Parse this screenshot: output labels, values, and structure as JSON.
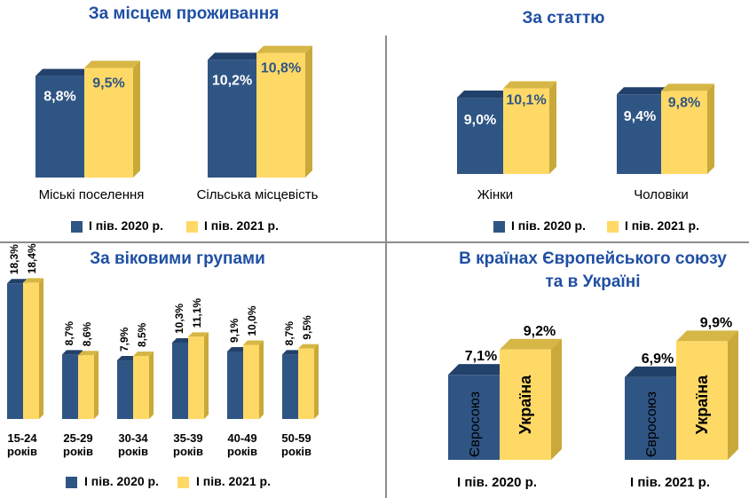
{
  "colors": {
    "blue": "#2f5584",
    "blue_top": "#22416a",
    "blue_side": "#1f3b60",
    "yellow": "#ffd966",
    "yellow_top": "#d6b745",
    "yellow_side": "#c9a93a",
    "title": "#1f4fa3",
    "divider": "#7f7f7f"
  },
  "legend": {
    "s2020": "І пів. 2020 р.",
    "s2021": "І пів. 2021 р."
  },
  "chart_data": [
    {
      "type": "bar",
      "title": "За місцем проживання",
      "categories": [
        "Міські поселення",
        "Сільська місцевість"
      ],
      "series": [
        {
          "name": "І пів. 2020 р.",
          "values": [
            8.8,
            10.2
          ],
          "labels": [
            "8,8%",
            "10,2%"
          ]
        },
        {
          "name": "І пів. 2021 р.",
          "values": [
            9.5,
            10.8
          ],
          "labels": [
            "9,5%",
            "10,8%"
          ]
        }
      ]
    },
    {
      "type": "bar",
      "title": "За статтю",
      "categories": [
        "Жінки",
        "Чоловіки"
      ],
      "series": [
        {
          "name": "І пів. 2020 р.",
          "values": [
            9.0,
            9.4
          ],
          "labels": [
            "9,0%",
            "9,4%"
          ]
        },
        {
          "name": "І пів. 2021 р.",
          "values": [
            10.1,
            9.8
          ],
          "labels": [
            "10,1%",
            "9,8%"
          ]
        }
      ]
    },
    {
      "type": "bar",
      "title": "За віковими групами",
      "categories": [
        [
          "15-24",
          "років"
        ],
        [
          "25-29",
          "років"
        ],
        [
          "30-34",
          "років"
        ],
        [
          "35-39",
          "років"
        ],
        [
          "40-49",
          "років"
        ],
        [
          "50-59",
          "років"
        ]
      ],
      "series": [
        {
          "name": "І пів. 2020 р.",
          "values": [
            18.3,
            8.7,
            7.9,
            10.3,
            9.1,
            8.7
          ],
          "labels": [
            "18,3%",
            "8,7%",
            "7,9%",
            "10,3%",
            "9,1%",
            "8,7%"
          ]
        },
        {
          "name": "І пів. 2021 р.",
          "values": [
            18.4,
            8.6,
            8.5,
            11.1,
            10.0,
            9.5
          ],
          "labels": [
            "18,4%",
            "8,6%",
            "8,5%",
            "11,1%",
            "10,0%",
            "9,5%"
          ]
        }
      ]
    },
    {
      "type": "bar",
      "title": [
        "В країнах Європейського союзу",
        "та в Україні"
      ],
      "categories": [
        "І пів. 2020 р.",
        "І пів. 2021 р."
      ],
      "series": [
        {
          "name": "Євросоюз",
          "values": [
            7.1,
            6.9
          ],
          "labels": [
            "7,1%",
            "6,9%"
          ]
        },
        {
          "name": "Україна",
          "values": [
            9.2,
            9.9
          ],
          "labels": [
            "9,2%",
            "9,9%"
          ]
        }
      ]
    }
  ]
}
